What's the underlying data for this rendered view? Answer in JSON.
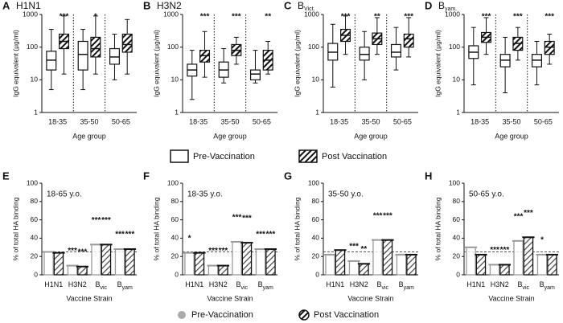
{
  "chart_data": [
    {
      "type": "box",
      "letter": "A",
      "title": "H1N1",
      "ylabel": "IgG equivalent (μg/ml)",
      "xlabel": "Age group",
      "categories": [
        "18-35",
        "35-50",
        "50-65"
      ],
      "log_y": true,
      "ylim": [
        1,
        1000
      ],
      "yticks": [
        1,
        10,
        100,
        1000
      ],
      "significance": [
        "***",
        "*",
        null
      ],
      "series": [
        {
          "style": "open",
          "boxes": [
            {
              "min": 5,
              "q1": 20,
              "median": 40,
              "q3": 75,
              "max": 350
            },
            {
              "min": 5,
              "q1": 20,
              "median": 60,
              "q3": 150,
              "max": 350
            },
            {
              "min": 10,
              "q1": 30,
              "median": 50,
              "q3": 90,
              "max": 250
            }
          ]
        },
        {
          "style": "hatched",
          "boxes": [
            {
              "min": 15,
              "q1": 90,
              "median": 150,
              "q3": 250,
              "max": 900
            },
            {
              "min": 15,
              "q1": 50,
              "median": 90,
              "q3": 200,
              "max": 900
            },
            {
              "min": 15,
              "q1": 70,
              "median": 120,
              "q3": 250,
              "max": 700
            }
          ]
        }
      ]
    },
    {
      "type": "box",
      "letter": "B",
      "title": "H3N2",
      "ylabel": "IgG equivalent (μg/ml)",
      "xlabel": "Age group",
      "categories": [
        "18-35",
        "35-50",
        "50-65"
      ],
      "log_y": true,
      "ylim": [
        1,
        1000
      ],
      "yticks": [
        1,
        10,
        100,
        1000
      ],
      "significance": [
        "***",
        "***",
        "**"
      ],
      "series": [
        {
          "style": "open",
          "boxes": [
            {
              "min": 2.5,
              "q1": 13,
              "median": 20,
              "q3": 30,
              "max": 80
            },
            {
              "min": 8,
              "q1": 12,
              "median": 20,
              "q3": 35,
              "max": 90
            },
            {
              "min": 8,
              "q1": 10,
              "median": 15,
              "q3": 20,
              "max": 80
            }
          ]
        },
        {
          "style": "hatched",
          "boxes": [
            {
              "min": 12,
              "q1": 35,
              "median": 55,
              "q3": 80,
              "max": 300
            },
            {
              "min": 30,
              "q1": 55,
              "median": 80,
              "q3": 120,
              "max": 200
            },
            {
              "min": 15,
              "q1": 20,
              "median": 40,
              "q3": 80,
              "max": 150
            }
          ]
        }
      ]
    },
    {
      "type": "box",
      "letter": "C",
      "title": "B",
      "title_sub": "Vict.",
      "ylabel": "IgG equivalent (μg/ml)",
      "xlabel": "Age group",
      "categories": [
        "18-35",
        "35-50",
        "50-65"
      ],
      "log_y": true,
      "ylim": [
        1,
        1000
      ],
      "yticks": [
        1,
        10,
        100,
        1000
      ],
      "significance": [
        "***",
        "**",
        "***"
      ],
      "series": [
        {
          "style": "open",
          "boxes": [
            {
              "min": 6,
              "q1": 40,
              "median": 70,
              "q3": 130,
              "max": 500
            },
            {
              "min": 10,
              "q1": 40,
              "median": 60,
              "q3": 100,
              "max": 300
            },
            {
              "min": 20,
              "q1": 50,
              "median": 70,
              "q3": 120,
              "max": 400
            }
          ]
        },
        {
          "style": "hatched",
          "boxes": [
            {
              "min": 60,
              "q1": 150,
              "median": 230,
              "q3": 350,
              "max": 900
            },
            {
              "min": 60,
              "q1": 120,
              "median": 180,
              "q3": 270,
              "max": 800
            },
            {
              "min": 50,
              "q1": 100,
              "median": 180,
              "q3": 250,
              "max": 800
            }
          ]
        }
      ]
    },
    {
      "type": "box",
      "letter": "D",
      "title": "B",
      "title_sub": "yam.",
      "ylabel": "IgG equivalent (μg/ml)",
      "xlabel": "Age group",
      "categories": [
        "18-35",
        "35-50",
        "50-65"
      ],
      "log_y": true,
      "ylim": [
        1,
        1000
      ],
      "yticks": [
        1,
        10,
        100,
        1000
      ],
      "significance": [
        "***",
        "***",
        "***"
      ],
      "series": [
        {
          "style": "open",
          "boxes": [
            {
              "min": 7,
              "q1": 45,
              "median": 70,
              "q3": 110,
              "max": 400
            },
            {
              "min": 4,
              "q1": 25,
              "median": 40,
              "q3": 60,
              "max": 200
            },
            {
              "min": 7,
              "q1": 25,
              "median": 40,
              "q3": 60,
              "max": 150
            }
          ]
        },
        {
          "style": "hatched",
          "boxes": [
            {
              "min": 60,
              "q1": 140,
              "median": 200,
              "q3": 280,
              "max": 800
            },
            {
              "min": 40,
              "q1": 80,
              "median": 130,
              "q3": 200,
              "max": 400
            },
            {
              "min": 30,
              "q1": 60,
              "median": 100,
              "q3": 150,
              "max": 250
            }
          ]
        }
      ]
    },
    {
      "type": "bar",
      "letter": "E",
      "title": "18-65 y.o.",
      "ylabel": "% of total HA binding",
      "xlabel": "Vaccine Strain",
      "categories": [
        "H1N1",
        "H3N2",
        "B",
        "B"
      ],
      "category_subs": [
        null,
        null,
        "vic",
        "yam"
      ],
      "ylim": [
        0,
        100
      ],
      "yticks": [
        0,
        20,
        40,
        60,
        80,
        100
      ],
      "refline": 25,
      "series": [
        {
          "color": "#9a9a9a",
          "values": [
            25,
            10,
            33,
            28
          ],
          "significance": [
            null,
            "***",
            "***",
            "***"
          ]
        },
        {
          "color": "#111111",
          "style": "hatched",
          "values": [
            24,
            9,
            33,
            28
          ],
          "significance": [
            null,
            "***",
            "***",
            "***"
          ]
        }
      ]
    },
    {
      "type": "bar",
      "letter": "F",
      "title": "18-35 y.o.",
      "ylabel": "% of total HA binding",
      "xlabel": "Vaccine Strain",
      "categories": [
        "H1N1",
        "H3N2",
        "B",
        "B"
      ],
      "category_subs": [
        null,
        null,
        "vic",
        "yam"
      ],
      "ylim": [
        0,
        100
      ],
      "yticks": [
        0,
        20,
        40,
        60,
        80,
        100
      ],
      "refline": 25,
      "series": [
        {
          "color": "#9a9a9a",
          "values": [
            24,
            10,
            36,
            28
          ],
          "significance": [
            "*",
            "***",
            "***",
            "***"
          ]
        },
        {
          "color": "#111111",
          "style": "hatched",
          "values": [
            24,
            10,
            35,
            28
          ],
          "significance": [
            null,
            "***",
            "***",
            "***"
          ]
        }
      ]
    },
    {
      "type": "bar",
      "letter": "G",
      "title": "35-50 y.o.",
      "ylabel": "% of total HA binding",
      "xlabel": "Vaccine Strain",
      "categories": [
        "H1N1",
        "H3N2",
        "B",
        "B"
      ],
      "category_subs": [
        null,
        null,
        "vic",
        "yam"
      ],
      "ylim": [
        0,
        100
      ],
      "yticks": [
        0,
        20,
        40,
        60,
        80,
        100
      ],
      "refline": 25,
      "series": [
        {
          "color": "#9a9a9a",
          "values": [
            22,
            15,
            38,
            22
          ],
          "significance": [
            null,
            "***",
            "***",
            null
          ]
        },
        {
          "color": "#111111",
          "style": "hatched",
          "values": [
            27,
            12,
            38,
            22
          ],
          "significance": [
            null,
            "**",
            "***",
            null
          ]
        }
      ]
    },
    {
      "type": "bar",
      "letter": "H",
      "title": "50-65 y.o.",
      "ylabel": "% of total HA binding",
      "xlabel": "Vaccine Strain",
      "categories": [
        "H1N1",
        "H3N2",
        "B",
        "B"
      ],
      "category_subs": [
        null,
        null,
        "vic",
        "yam"
      ],
      "ylim": [
        0,
        100
      ],
      "yticks": [
        0,
        20,
        40,
        60,
        80,
        100
      ],
      "refline": 25,
      "series": [
        {
          "color": "#9a9a9a",
          "values": [
            30,
            11,
            37,
            22
          ],
          "significance": [
            null,
            "***",
            "***",
            "*"
          ]
        },
        {
          "color": "#111111",
          "style": "hatched",
          "values": [
            22,
            11,
            41,
            22
          ],
          "significance": [
            null,
            "***",
            "***",
            null
          ]
        }
      ]
    }
  ],
  "legend_top": [
    "Pre-Vaccination",
    "Post Vaccination"
  ],
  "legend_bottom": [
    "Pre-Vaccination",
    "Post Vaccination"
  ]
}
